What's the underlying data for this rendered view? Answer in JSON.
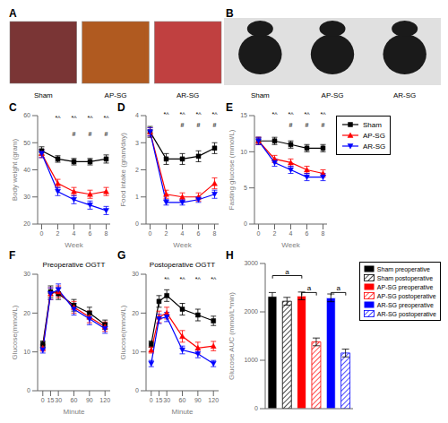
{
  "chart_data": [
    {
      "type": "photo",
      "title": "A",
      "categories": [
        "Sham",
        "AP-SG",
        "AR-SG"
      ],
      "colors": [
        "#7a3535",
        "#b05a20",
        "#c04040"
      ]
    },
    {
      "type": "photo",
      "title": "B",
      "categories": [
        "Sham",
        "AP-SG",
        "AR-SG"
      ]
    },
    {
      "type": "line",
      "title": "C",
      "xlabel": "Week",
      "ylabel": "Body weight (gram)",
      "x": [
        0,
        2,
        4,
        6,
        8
      ],
      "xlim": [
        -0.5,
        8.5
      ],
      "xticks": [
        0,
        2,
        4,
        6,
        8
      ],
      "ylim": [
        20,
        60
      ],
      "yticks": [
        20,
        30,
        40,
        50,
        60
      ],
      "series": [
        {
          "name": "Sham",
          "color": "#000000",
          "marker": "square",
          "values": [
            47,
            44,
            43,
            43,
            44
          ],
          "errors": [
            1.5,
            1.2,
            1.2,
            1.2,
            1.5
          ]
        },
        {
          "name": "AP-SG",
          "color": "#ff0000",
          "marker": "triangle-up",
          "values": [
            46,
            35,
            32,
            31,
            32
          ],
          "errors": [
            1.5,
            1.5,
            1.5,
            1.5,
            1.5
          ]
        },
        {
          "name": "AR-SG",
          "color": "#0000ff",
          "marker": "triangle-down",
          "values": [
            46,
            32,
            29,
            27,
            25
          ],
          "errors": [
            1.5,
            1.5,
            1.5,
            1.5,
            1.5
          ]
        }
      ],
      "annotations": [
        {
          "text": "*^",
          "x": 2,
          "y": 56.4
        },
        {
          "text": "*^",
          "x": 4,
          "y": 56.4
        },
        {
          "text": "*^",
          "x": 6,
          "y": 56.4
        },
        {
          "text": "*^",
          "x": 8,
          "y": 56.4
        },
        {
          "text": "#",
          "x": 4,
          "y": 50.4
        },
        {
          "text": "#",
          "x": 6,
          "y": 50.4
        },
        {
          "text": "#",
          "x": 8,
          "y": 50.4
        }
      ]
    },
    {
      "type": "line",
      "title": "D",
      "xlabel": "Week",
      "ylabel": "Food intake (gram/day)",
      "x": [
        0,
        2,
        4,
        6,
        8
      ],
      "xlim": [
        -0.5,
        8.5
      ],
      "xticks": [
        0,
        2,
        4,
        6,
        8
      ],
      "ylim": [
        0,
        4
      ],
      "yticks": [
        0,
        1,
        2,
        3,
        4
      ],
      "series": [
        {
          "name": "Sham",
          "color": "#000000",
          "marker": "square",
          "values": [
            3.4,
            2.4,
            2.4,
            2.5,
            2.8
          ],
          "errors": [
            0.2,
            0.2,
            0.2,
            0.2,
            0.2
          ]
        },
        {
          "name": "AP-SG",
          "color": "#ff0000",
          "marker": "triangle-up",
          "values": [
            3.4,
            1.1,
            1.0,
            1.0,
            1.5
          ],
          "errors": [
            0.15,
            0.15,
            0.15,
            0.15,
            0.2
          ]
        },
        {
          "name": "AR-SG",
          "color": "#0000ff",
          "marker": "triangle-down",
          "values": [
            3.4,
            0.8,
            0.8,
            0.9,
            1.1
          ],
          "errors": [
            0.15,
            0.1,
            0.1,
            0.1,
            0.15
          ]
        }
      ],
      "annotations": [
        {
          "text": "*^",
          "x": 2,
          "y": 3.76
        },
        {
          "text": "*^",
          "x": 4,
          "y": 3.76
        },
        {
          "text": "*^",
          "x": 6,
          "y": 3.76
        },
        {
          "text": "*^",
          "x": 8,
          "y": 3.76
        },
        {
          "text": "#",
          "x": 4,
          "y": 3.36
        },
        {
          "text": "#",
          "x": 6,
          "y": 3.36
        },
        {
          "text": "#",
          "x": 8,
          "y": 3.36
        }
      ]
    },
    {
      "type": "line",
      "title": "E",
      "xlabel": "Week",
      "ylabel": "Fasting glucose (mmol/L)",
      "x": [
        0,
        2,
        4,
        6,
        8
      ],
      "xlim": [
        -0.5,
        8.5
      ],
      "xticks": [
        0,
        2,
        4,
        6,
        8
      ],
      "ylim": [
        0,
        15
      ],
      "yticks": [
        0,
        5,
        10,
        15
      ],
      "legend": "right",
      "series": [
        {
          "name": "Sham",
          "color": "#000000",
          "marker": "square",
          "values": [
            11.5,
            11.5,
            11.0,
            10.5,
            10.5
          ],
          "errors": [
            0.5,
            0.5,
            0.5,
            0.5,
            0.5
          ]
        },
        {
          "name": "AP-SG",
          "color": "#ff0000",
          "marker": "triangle-up",
          "values": [
            11.5,
            9.0,
            8.5,
            7.5,
            7.0
          ],
          "errors": [
            0.5,
            0.5,
            0.5,
            0.5,
            0.5
          ]
        },
        {
          "name": "AR-SG",
          "color": "#0000ff",
          "marker": "triangle-down",
          "values": [
            11.5,
            8.5,
            7.5,
            6.5,
            6.5
          ],
          "errors": [
            0.5,
            0.5,
            0.5,
            0.5,
            0.5
          ]
        }
      ],
      "annotations": [
        {
          "text": "*^",
          "x": 2,
          "y": 14.1
        },
        {
          "text": "*^",
          "x": 4,
          "y": 14.1
        },
        {
          "text": "*^",
          "x": 6,
          "y": 14.1
        },
        {
          "text": "*^",
          "x": 8,
          "y": 14.1
        },
        {
          "text": "#",
          "x": 4,
          "y": 12.6
        },
        {
          "text": "#",
          "x": 6,
          "y": 12.6
        },
        {
          "text": "#",
          "x": 8,
          "y": 12.6
        }
      ]
    },
    {
      "type": "line",
      "title": "F",
      "subtitle": "Preoperative OGTT",
      "xlabel": "Minute",
      "ylabel": "Glucose(mmol/L)",
      "x": [
        0,
        15,
        30,
        60,
        90,
        120
      ],
      "xlim": [
        -10,
        130
      ],
      "xticks": [
        0,
        15,
        30,
        60,
        90,
        120
      ],
      "ylim": [
        0,
        30
      ],
      "yticks": [
        0,
        10,
        20,
        30
      ],
      "series": [
        {
          "name": "Sham",
          "color": "#000000",
          "marker": "square",
          "values": [
            12.0,
            25.5,
            25.0,
            22.0,
            20.0,
            17.0
          ],
          "errors": [
            0.8,
            1.5,
            1.5,
            1.5,
            1.5,
            1.2
          ]
        },
        {
          "name": "AP-SG",
          "color": "#ff0000",
          "marker": "triangle-up",
          "values": [
            11.0,
            25.0,
            25.5,
            21.5,
            19.0,
            16.5
          ],
          "errors": [
            0.8,
            1.5,
            1.5,
            1.5,
            1.5,
            1.2
          ]
        },
        {
          "name": "AR-SG",
          "color": "#0000ff",
          "marker": "triangle-down",
          "values": [
            10.5,
            25.0,
            26.0,
            21.0,
            18.5,
            16.0
          ],
          "errors": [
            0.8,
            1.5,
            1.5,
            1.5,
            1.5,
            1.2
          ]
        }
      ]
    },
    {
      "type": "line",
      "title": "G",
      "subtitle": "Postoperative OGTT",
      "xlabel": "Minute",
      "ylabel": "Glucose(mmol/L)",
      "x": [
        0,
        15,
        30,
        60,
        90,
        120
      ],
      "xlim": [
        -10,
        130
      ],
      "xticks": [
        0,
        15,
        30,
        60,
        90,
        120
      ],
      "ylim": [
        0,
        30
      ],
      "yticks": [
        0,
        10,
        20,
        30
      ],
      "series": [
        {
          "name": "Sham",
          "color": "#000000",
          "marker": "square",
          "values": [
            12.0,
            23.0,
            24.5,
            21.0,
            19.5,
            18.0
          ],
          "errors": [
            0.8,
            1.5,
            1.5,
            1.5,
            1.5,
            1.2
          ]
        },
        {
          "name": "AP-SG",
          "color": "#ff0000",
          "marker": "triangle-up",
          "values": [
            10.5,
            19.0,
            20.0,
            14.0,
            11.0,
            11.5
          ],
          "errors": [
            0.8,
            1.5,
            1.5,
            1.5,
            1.5,
            1.2
          ]
        },
        {
          "name": "AR-SG",
          "color": "#0000ff",
          "marker": "triangle-down",
          "values": [
            7.0,
            18.5,
            19.0,
            10.5,
            9.5,
            7.0
          ],
          "errors": [
            0.8,
            1.2,
            1.2,
            1.0,
            1.0,
            0.8
          ]
        }
      ],
      "annotations": [
        {
          "text": "*^",
          "x": 30,
          "y": 26.7
        },
        {
          "text": "*^",
          "x": 60,
          "y": 26.7
        },
        {
          "text": "*^",
          "x": 90,
          "y": 26.7
        },
        {
          "text": "*^",
          "x": 120,
          "y": 26.7
        }
      ]
    },
    {
      "type": "bar",
      "title": "H",
      "ylabel": "Glucose AUC (mmol/L*min)",
      "categories": [
        "Sham preoperative",
        "Sham postoperative",
        "AP-SG preoperative",
        "AP-SG postoperative",
        "AR-SG preoperative",
        "AR-SG postoperative"
      ],
      "values": [
        2320,
        2220,
        2330,
        1380,
        2290,
        1150
      ],
      "errors": [
        80,
        80,
        80,
        80,
        80,
        80
      ],
      "colors": [
        "#000000",
        "#000000",
        "#ff0000",
        "#ff0000",
        "#0000ff",
        "#0000ff"
      ],
      "fill": [
        "solid",
        "hatched",
        "solid",
        "hatched",
        "solid",
        "hatched"
      ],
      "ylim": [
        0,
        3000
      ],
      "yticks": [
        0,
        1000,
        2000,
        3000
      ],
      "tick_labels": "y",
      "legend": "upper right",
      "annotations": [
        {
          "text": "a",
          "from": 0,
          "to": 2,
          "y": 2750
        },
        {
          "text": "a",
          "from": 2,
          "to": 3,
          "y": 2400
        },
        {
          "text": "a",
          "from": 4,
          "to": 5,
          "y": 2400
        }
      ]
    }
  ]
}
